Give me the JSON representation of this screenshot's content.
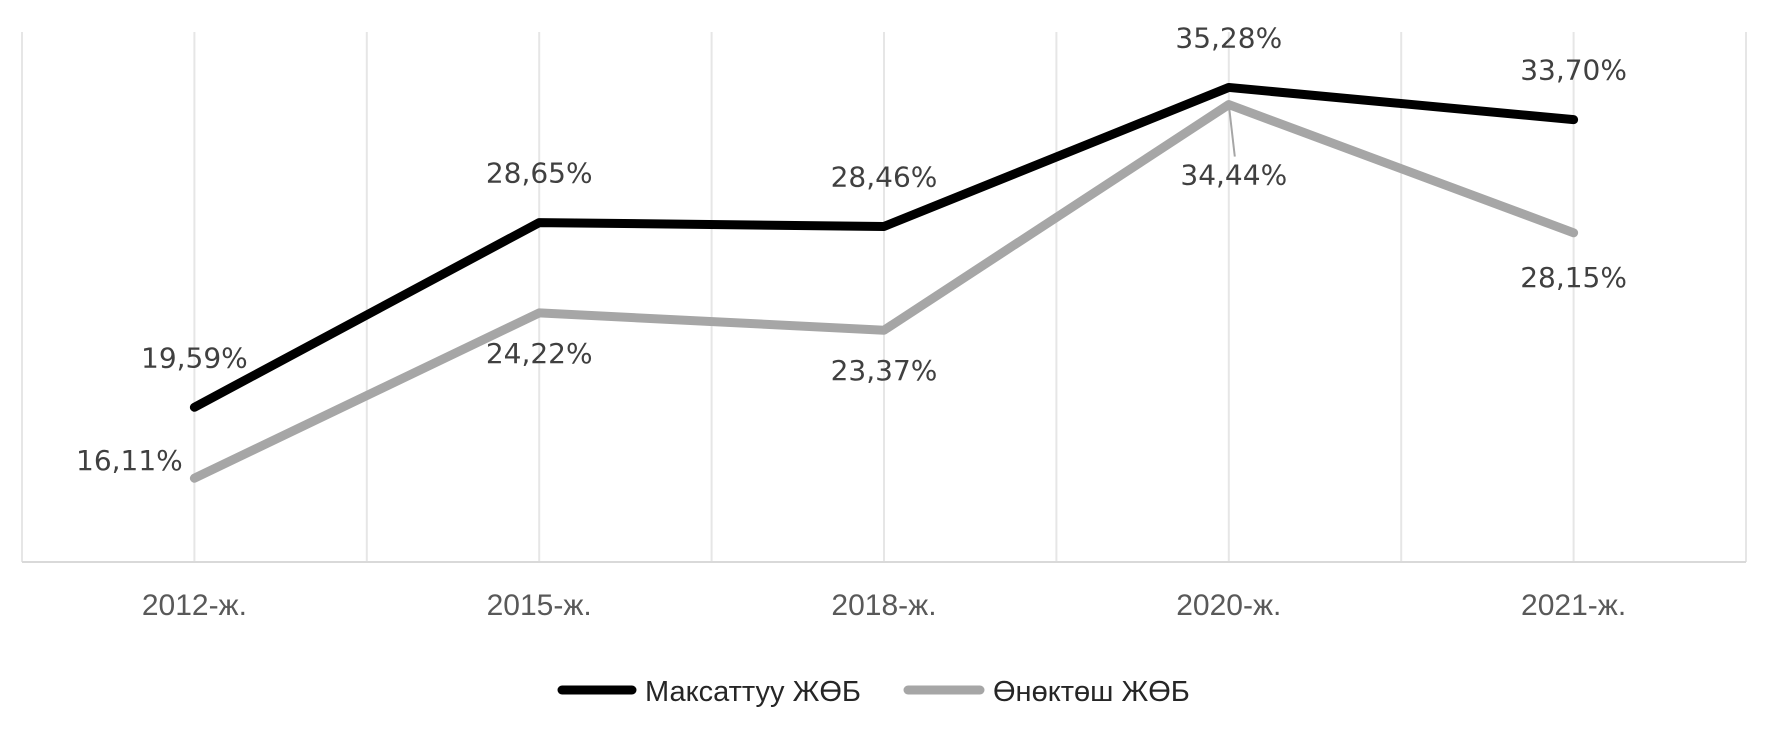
{
  "chart_data": {
    "type": "line",
    "title": "",
    "xlabel": "",
    "ylabel": "",
    "categories": [
      "2012-ж.",
      "2015-ж.",
      "2018-ж.",
      "2020-ж.",
      "2021-ж."
    ],
    "ylim": [
      12,
      38
    ],
    "grid": "vertical",
    "legend_position": "bottom",
    "series": [
      {
        "name": "Максаттуу ЖӨБ",
        "color": "#000000",
        "values": [
          19.59,
          28.65,
          28.46,
          35.28,
          33.7
        ],
        "labels": [
          "19,59%",
          "28,65%",
          "28,46%",
          "35,28%",
          "33,70%"
        ]
      },
      {
        "name": "Өнөктөш ЖӨБ",
        "color": "#a6a6a6",
        "values": [
          16.11,
          24.22,
          23.37,
          34.44,
          28.15
        ],
        "labels": [
          "16,11%",
          "24,22%",
          "23,37%",
          "34,44%",
          "28,15%"
        ]
      }
    ]
  }
}
